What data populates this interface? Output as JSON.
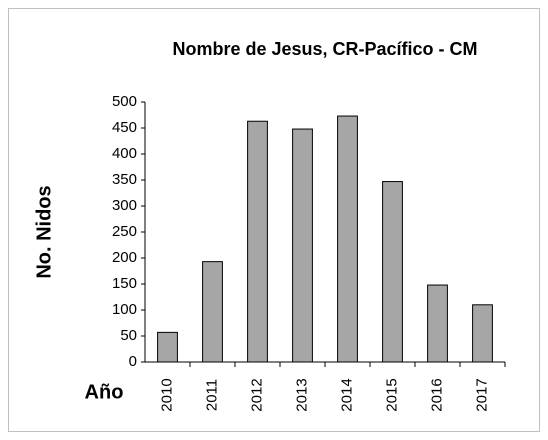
{
  "chart_data": {
    "type": "bar",
    "title": "Nombre de Jesus, CR-Pacífico - CM",
    "y_label": "No. Nidos",
    "x_label": "Año",
    "categories": [
      "2010",
      "2011",
      "2012",
      "2013",
      "2014",
      "2015",
      "2016",
      "2017"
    ],
    "values": [
      57,
      193,
      463,
      448,
      473,
      347,
      148,
      110
    ],
    "color": "#a6a6a6",
    "ylim": [
      0,
      500
    ],
    "yticks": [
      0,
      50,
      100,
      150,
      200,
      250,
      300,
      350,
      400,
      450,
      500
    ],
    "grid": false
  }
}
